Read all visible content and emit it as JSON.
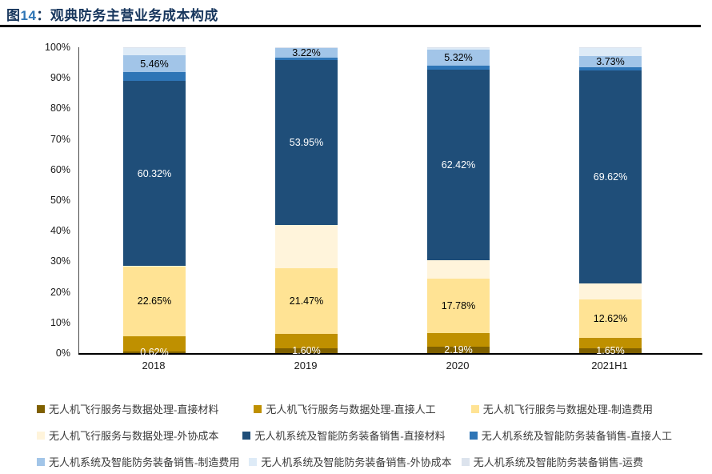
{
  "title": {
    "prefix": "图",
    "number": "14",
    "colon": "：",
    "text": "观典防务主营业务成本构成"
  },
  "colors": {
    "title": "#17365D",
    "title_number": "#2E75B6",
    "underline": "#000000",
    "axis_line": "#4A4A4A",
    "baseline": "#000000"
  },
  "chart_data": {
    "type": "bar",
    "stacked": true,
    "percent_stack": true,
    "title": "观典防务主营业务成本构成",
    "xlabel": "",
    "ylabel": "",
    "ylim": [
      0,
      100
    ],
    "grid": false,
    "legend_position": "bottom",
    "y_ticks": [
      "0%",
      "10%",
      "20%",
      "30%",
      "40%",
      "50%",
      "60%",
      "70%",
      "80%",
      "90%",
      "100%"
    ],
    "categories": [
      "2018",
      "2019",
      "2020",
      "2021H1"
    ],
    "series": [
      {
        "name": "无人机飞行服务与数据处理-直接材料",
        "color": "#7F6000",
        "labeled": true,
        "label_color": "#FFFFFF",
        "values": [
          0.62,
          1.6,
          2.19,
          1.65
        ]
      },
      {
        "name": "无人机飞行服务与数据处理-直接人工",
        "color": "#BF9000",
        "labeled": false,
        "values": [
          5.0,
          4.6,
          4.3,
          3.2
        ]
      },
      {
        "name": "无人机飞行服务与数据处理-制造费用",
        "color": "#FFE394",
        "labeled": true,
        "label_color": "#000000",
        "values": [
          22.65,
          21.47,
          17.78,
          12.62
        ]
      },
      {
        "name": "无人机飞行服务与数据处理-外协成本",
        "color": "#FFF4DB",
        "labeled": false,
        "values": [
          0.3,
          14.2,
          6.0,
          5.3
        ]
      },
      {
        "name": "无人机系统及智能防务装备销售-直接材料",
        "color": "#1F4E79",
        "labeled": true,
        "label_color": "#FFFFFF",
        "values": [
          60.32,
          53.95,
          62.42,
          69.62
        ]
      },
      {
        "name": "无人机系统及智能防务装备销售-直接人工",
        "color": "#2E75B6",
        "labeled": false,
        "values": [
          2.95,
          0.7,
          1.3,
          1.0
        ]
      },
      {
        "name": "无人机系统及智能防务装备销售-制造费用",
        "color": "#A2C5E8",
        "labeled": true,
        "label_color": "#000000",
        "values": [
          5.46,
          3.22,
          5.32,
          3.73
        ]
      },
      {
        "name": "无人机系统及智能防务装备销售-外协成本",
        "color": "#DEEBF7",
        "labeled": false,
        "values": [
          2.4,
          0.2,
          0.4,
          2.6
        ]
      },
      {
        "name": "无人机系统及智能防务装备销售-运费",
        "color": "#DCE3ED",
        "labeled": false,
        "values": [
          0.3,
          0.06,
          0.29,
          0.28
        ]
      }
    ],
    "shown_data_labels": {
      "2018": [
        "0.62%",
        "22.65%",
        "60.32%",
        "5.46%"
      ],
      "2019": [
        "1.60%",
        "21.47%",
        "53.95%",
        "3.22%"
      ],
      "2020": [
        "2.19%",
        "17.78%",
        "62.42%",
        "5.32%"
      ],
      "2021H1": [
        "1.65%",
        "12.62%",
        "69.62%",
        "3.73%"
      ]
    },
    "legend_rows": [
      [
        0,
        1,
        2
      ],
      [
        3,
        4,
        5
      ],
      [
        6,
        7,
        8
      ]
    ]
  }
}
